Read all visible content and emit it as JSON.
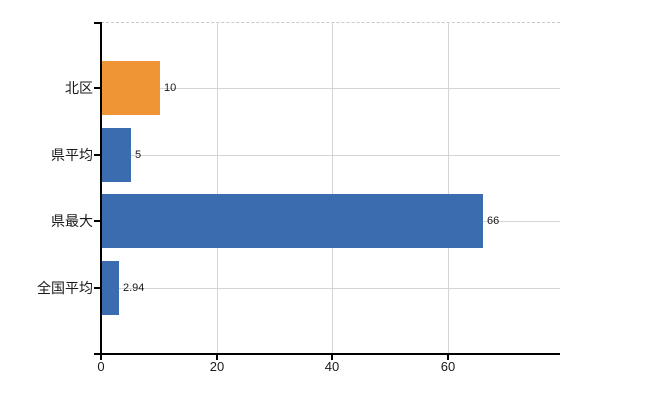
{
  "chart_data": {
    "type": "bar",
    "orientation": "horizontal",
    "title": "",
    "xlabel": "",
    "ylabel": "",
    "categories": [
      "北区",
      "県平均",
      "県最大",
      "全国平均"
    ],
    "values": [
      10,
      5,
      66,
      2.94
    ],
    "value_labels": [
      "10",
      "5",
      "66",
      "2.94"
    ],
    "bar_colors": [
      "#EF9535",
      "#3C6CB0",
      "#3C6CB0",
      "#3C6CB0"
    ],
    "x_ticks": [
      0,
      20,
      40,
      60
    ],
    "x_tick_labels": [
      "0",
      "20",
      "40",
      "60"
    ],
    "xlim": [
      0,
      79.5
    ],
    "grid": true,
    "legend": false,
    "colors": {
      "highlight_bar": "#EF9535",
      "default_bar": "#3C6CB0",
      "axis": "#000000",
      "grid_line": "#d5d5d5",
      "frame_dashed": "#c9c9c9",
      "text": "#1a1a1a",
      "background": "#ffffff"
    }
  }
}
